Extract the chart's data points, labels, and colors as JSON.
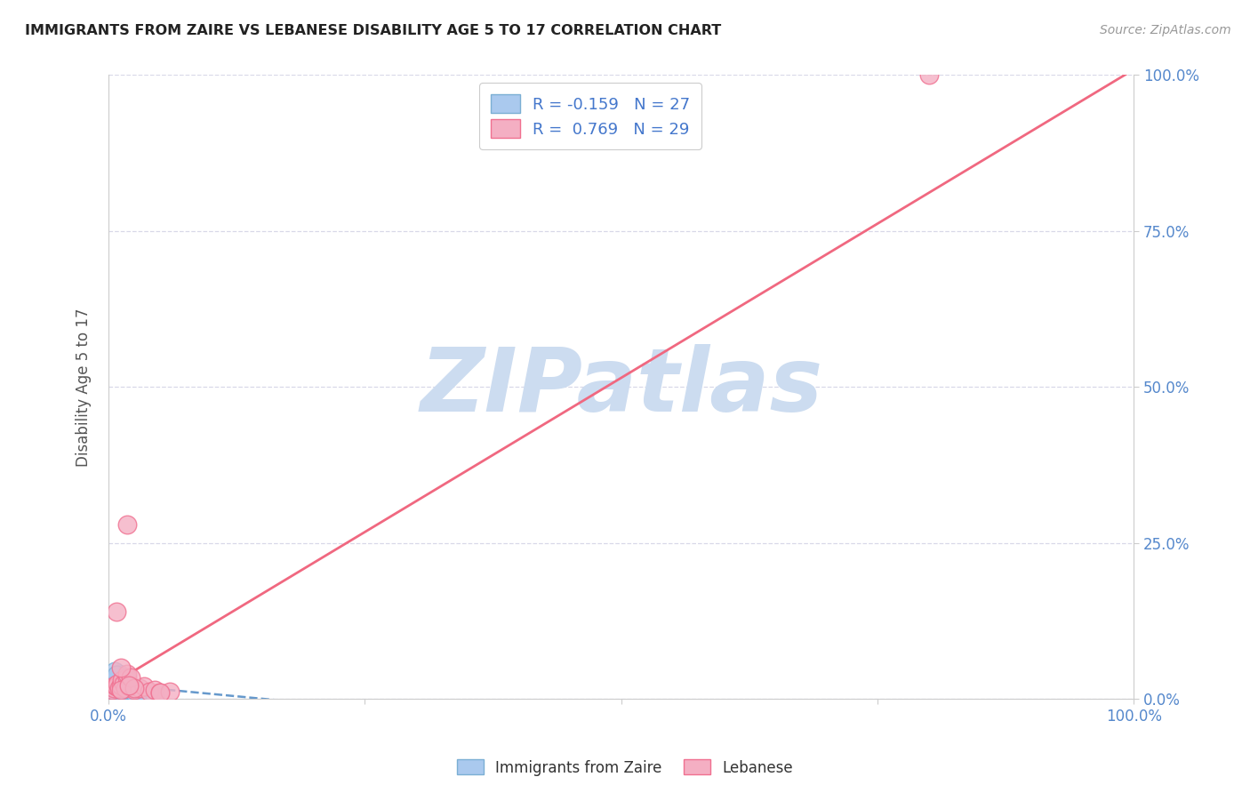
{
  "title": "IMMIGRANTS FROM ZAIRE VS LEBANESE DISABILITY AGE 5 TO 17 CORRELATION CHART",
  "source": "Source: ZipAtlas.com",
  "ylabel": "Disability Age 5 to 17",
  "ytick_labels": [
    "0.0%",
    "25.0%",
    "50.0%",
    "75.0%",
    "100.0%"
  ],
  "ytick_positions": [
    0.0,
    0.25,
    0.5,
    0.75,
    1.0
  ],
  "xtick_labels": [
    "0.0%",
    "100.0%"
  ],
  "xtick_positions": [
    0.0,
    1.0
  ],
  "legend_blue_label": "Immigrants from Zaire",
  "legend_pink_label": "Lebanese",
  "r_blue": -0.159,
  "n_blue": 27,
  "r_pink": 0.769,
  "n_pink": 29,
  "blue_fill_color": "#aac9ee",
  "pink_fill_color": "#f4afc3",
  "blue_edge_color": "#7bafd4",
  "pink_edge_color": "#f07090",
  "blue_line_color": "#6699cc",
  "pink_line_color": "#f06880",
  "watermark": "ZIPatlas",
  "watermark_color": "#ccdcf0",
  "blue_scatter_x": [
    0.003,
    0.004,
    0.005,
    0.006,
    0.007,
    0.008,
    0.009,
    0.01,
    0.011,
    0.012,
    0.013,
    0.014,
    0.015,
    0.016,
    0.017,
    0.018,
    0.019,
    0.02,
    0.021,
    0.003,
    0.004,
    0.006,
    0.008,
    0.025,
    0.03,
    0.035,
    0.045
  ],
  "blue_scatter_y": [
    0.02,
    0.025,
    0.022,
    0.03,
    0.018,
    0.028,
    0.035,
    0.04,
    0.015,
    0.012,
    0.022,
    0.018,
    0.025,
    0.02,
    0.03,
    0.015,
    0.018,
    0.022,
    0.02,
    0.01,
    0.015,
    0.045,
    0.038,
    0.01,
    0.012,
    0.008,
    0.005
  ],
  "pink_scatter_x": [
    0.003,
    0.005,
    0.006,
    0.008,
    0.009,
    0.01,
    0.012,
    0.013,
    0.015,
    0.016,
    0.018,
    0.02,
    0.025,
    0.03,
    0.035,
    0.04,
    0.045,
    0.05,
    0.06,
    0.008,
    0.012,
    0.018,
    0.022,
    0.025,
    0.018,
    0.012,
    0.05,
    0.8,
    0.02
  ],
  "pink_scatter_y": [
    0.015,
    0.018,
    0.022,
    0.02,
    0.025,
    0.018,
    0.022,
    0.03,
    0.025,
    0.018,
    0.035,
    0.02,
    0.015,
    0.018,
    0.02,
    0.012,
    0.015,
    0.01,
    0.012,
    0.14,
    0.015,
    0.04,
    0.035,
    0.018,
    0.28,
    0.05,
    0.01,
    1.0,
    0.022
  ],
  "background_color": "#ffffff",
  "grid_color": "#d8d8e8",
  "title_color": "#222222",
  "source_color": "#999999",
  "tick_color": "#5588cc",
  "ylabel_color": "#555555",
  "legend_r_color": "#222222",
  "legend_n_color": "#4477cc"
}
